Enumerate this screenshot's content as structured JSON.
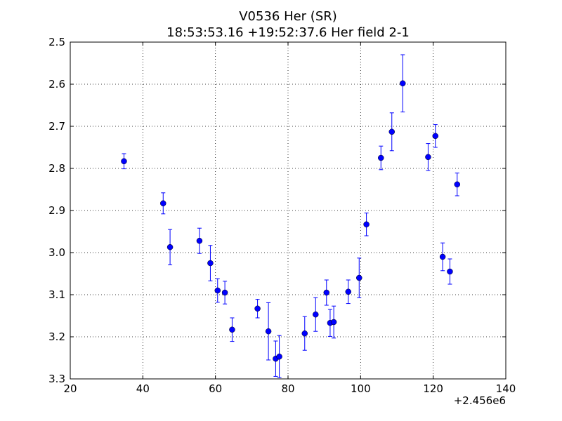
{
  "chart_data": {
    "type": "scatter",
    "title": "V0536 Her (SR)",
    "subtitle": "18:53:53.16 +19:52:37.6 Her field 2-1",
    "xlabel": "",
    "ylabel": "",
    "x_offset_label": "+2.456e6",
    "xlim": [
      20,
      140
    ],
    "ylim": [
      2.5,
      3.3
    ],
    "y_inverted": true,
    "xticks": [
      20,
      40,
      60,
      80,
      100,
      120,
      140
    ],
    "xtick_labels": [
      "20",
      "40",
      "60",
      "80",
      "100",
      "120",
      "140"
    ],
    "yticks": [
      2.5,
      2.6,
      2.7,
      2.8,
      2.9,
      3.0,
      3.1,
      3.2,
      3.3
    ],
    "ytick_labels": [
      "2.5",
      "2.6",
      "2.7",
      "2.8",
      "2.9",
      "3.0",
      "3.1",
      "3.2",
      "3.3"
    ],
    "grid": true,
    "marker_color": "#0000ff",
    "points": [
      {
        "x": 34.8,
        "y": 2.783,
        "err": 0.018
      },
      {
        "x": 45.6,
        "y": 2.883,
        "err": 0.025
      },
      {
        "x": 47.5,
        "y": 2.987,
        "err": 0.042
      },
      {
        "x": 55.6,
        "y": 2.972,
        "err": 0.03
      },
      {
        "x": 58.6,
        "y": 3.025,
        "err": 0.042
      },
      {
        "x": 60.6,
        "y": 3.09,
        "err": 0.028
      },
      {
        "x": 62.6,
        "y": 3.095,
        "err": 0.027
      },
      {
        "x": 64.6,
        "y": 3.183,
        "err": 0.028
      },
      {
        "x": 71.6,
        "y": 3.133,
        "err": 0.022
      },
      {
        "x": 74.6,
        "y": 3.187,
        "err": 0.068
      },
      {
        "x": 76.6,
        "y": 3.252,
        "err": 0.042
      },
      {
        "x": 77.6,
        "y": 3.247,
        "err": 0.05
      },
      {
        "x": 84.6,
        "y": 3.192,
        "err": 0.04
      },
      {
        "x": 87.6,
        "y": 3.147,
        "err": 0.04
      },
      {
        "x": 90.6,
        "y": 3.095,
        "err": 0.03
      },
      {
        "x": 91.6,
        "y": 3.167,
        "err": 0.032
      },
      {
        "x": 92.6,
        "y": 3.165,
        "err": 0.038
      },
      {
        "x": 96.6,
        "y": 3.093,
        "err": 0.028
      },
      {
        "x": 99.6,
        "y": 3.06,
        "err": 0.047
      },
      {
        "x": 101.6,
        "y": 2.933,
        "err": 0.027
      },
      {
        "x": 105.6,
        "y": 2.775,
        "err": 0.028
      },
      {
        "x": 108.6,
        "y": 2.713,
        "err": 0.045
      },
      {
        "x": 111.6,
        "y": 2.598,
        "err": 0.068
      },
      {
        "x": 118.6,
        "y": 2.773,
        "err": 0.032
      },
      {
        "x": 120.6,
        "y": 2.723,
        "err": 0.027
      },
      {
        "x": 122.6,
        "y": 3.01,
        "err": 0.033
      },
      {
        "x": 124.6,
        "y": 3.045,
        "err": 0.03
      },
      {
        "x": 126.6,
        "y": 2.838,
        "err": 0.027
      }
    ]
  }
}
